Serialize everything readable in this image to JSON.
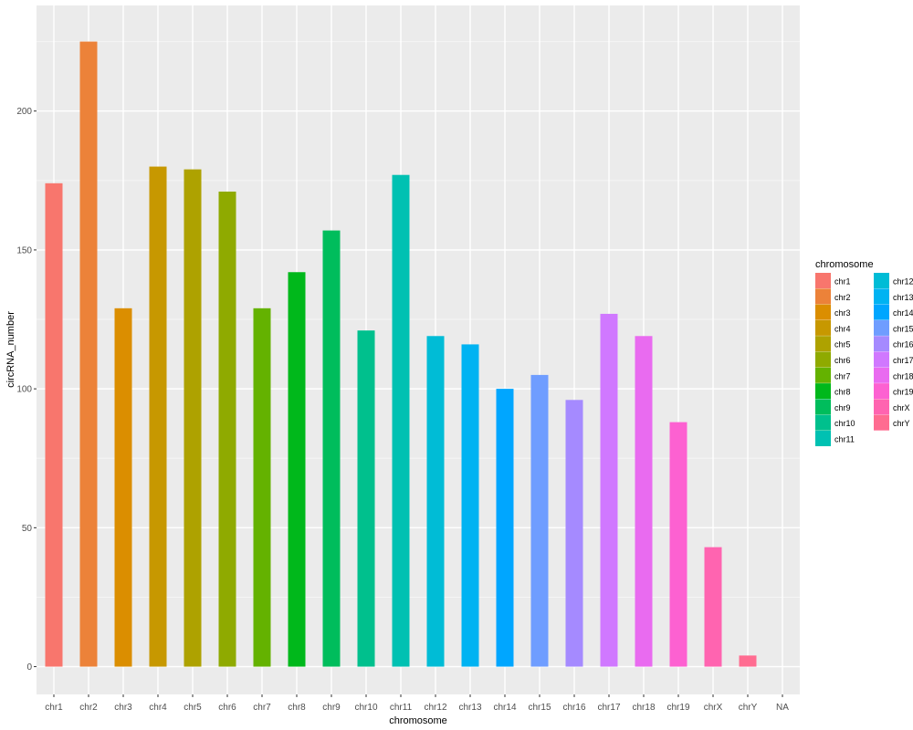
{
  "chart_data": {
    "type": "bar",
    "xlabel": "chromosome",
    "ylabel": "circRNA_number",
    "categories": [
      "chr1",
      "chr2",
      "chr3",
      "chr4",
      "chr5",
      "chr6",
      "chr7",
      "chr8",
      "chr9",
      "chr10",
      "chr11",
      "chr12",
      "chr13",
      "chr14",
      "chr15",
      "chr16",
      "chr17",
      "chr18",
      "chr19",
      "chrX",
      "chrY",
      "NA"
    ],
    "values": [
      174,
      225,
      129,
      180,
      179,
      171,
      129,
      142,
      157,
      121,
      177,
      119,
      116,
      100,
      105,
      96,
      127,
      119,
      88,
      43,
      4,
      0
    ],
    "colors": [
      "#F8766D",
      "#EC8239",
      "#DB8E00",
      "#C79800",
      "#AEA200",
      "#8FAA00",
      "#64B200",
      "#00B81B",
      "#00BD5C",
      "#00C08D",
      "#00C1B2",
      "#00BCD6",
      "#00B3F2",
      "#00A6FF",
      "#6F9DFF",
      "#A58AFF",
      "#D078FF",
      "#E96BF0",
      "#FD61D1",
      "#FF64B0",
      "#FF6C91"
    ],
    "ylim": [
      -10,
      238
    ],
    "yticks": [
      0,
      50,
      100,
      150,
      200
    ],
    "grid": true,
    "legend": {
      "title": "chromosome",
      "position": "right",
      "items": [
        "chr1",
        "chr2",
        "chr3",
        "chr4",
        "chr5",
        "chr6",
        "chr7",
        "chr8",
        "chr9",
        "chr10",
        "chr11",
        "chr12",
        "chr13",
        "chr14",
        "chr15",
        "chr16",
        "chr17",
        "chr18",
        "chr19",
        "chrX",
        "chrY"
      ]
    }
  }
}
